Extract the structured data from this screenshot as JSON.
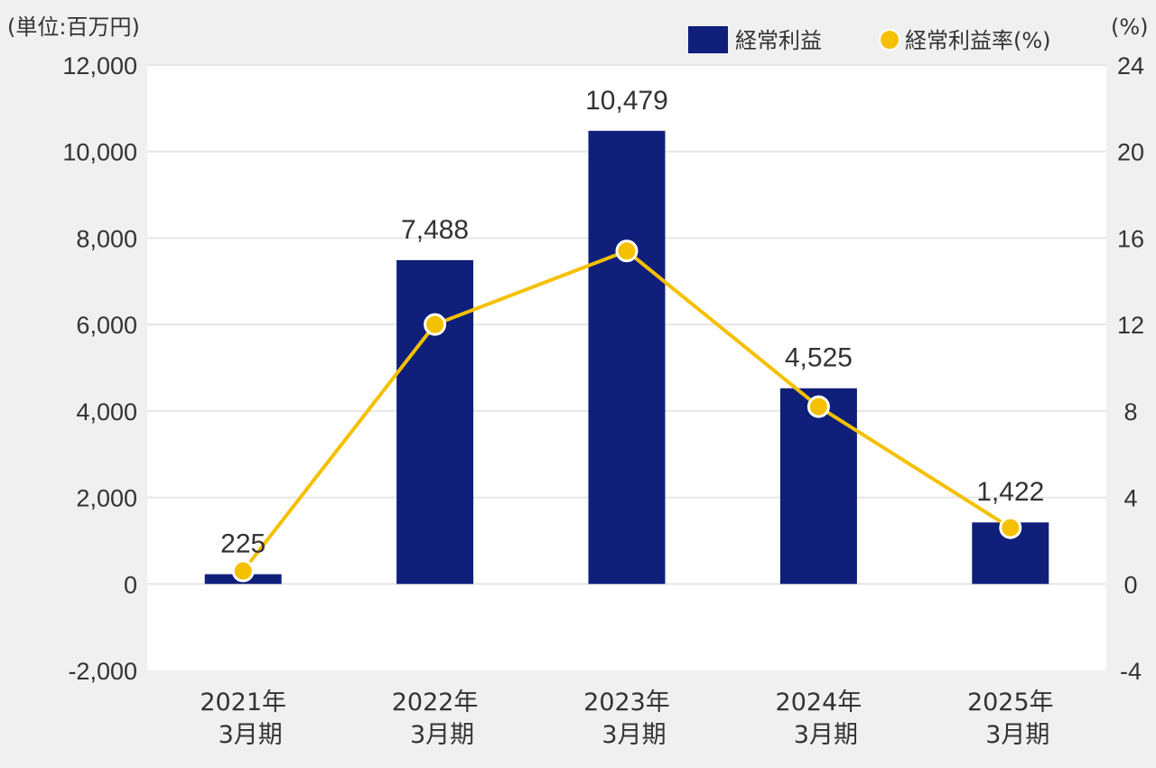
{
  "chart_data": {
    "type": "bar",
    "left_unit": "(単位:百万円)",
    "right_unit": "(%)",
    "categories": [
      [
        "2021年",
        "3月期"
      ],
      [
        "2022年",
        "3月期"
      ],
      [
        "2023年",
        "3月期"
      ],
      [
        "2024年",
        "3月期"
      ],
      [
        "2025年",
        "3月期"
      ]
    ],
    "series": [
      {
        "name": "経常利益",
        "type": "bar",
        "axis": "left",
        "color": "#0f1f7a",
        "values": [
          225,
          7488,
          10479,
          4525,
          1422
        ],
        "labels": [
          "225",
          "7,488",
          "10,479",
          "4,525",
          "1,422"
        ]
      },
      {
        "name": "経常利益率(%)",
        "type": "line",
        "axis": "right",
        "color": "#f5c000",
        "values": [
          0.6,
          12.0,
          15.4,
          8.2,
          2.6
        ]
      }
    ],
    "y_left": {
      "min": -2000,
      "max": 12000,
      "ticks": [
        -2000,
        0,
        2000,
        4000,
        6000,
        8000,
        10000,
        12000
      ],
      "tick_labels": [
        "-2,000",
        "0",
        "2,000",
        "4,000",
        "6,000",
        "8,000",
        "10,000",
        "12,000"
      ]
    },
    "y_right": {
      "min": -4,
      "max": 24,
      "ticks": [
        -4,
        0,
        4,
        8,
        12,
        16,
        20,
        24
      ],
      "tick_labels": [
        "-4",
        "0",
        "4",
        "8",
        "12",
        "16",
        "20",
        "24"
      ]
    },
    "grid": true,
    "legend_position": "top-right",
    "plot_background": "#ffffff",
    "gridline_color": "#e6e6e6"
  }
}
